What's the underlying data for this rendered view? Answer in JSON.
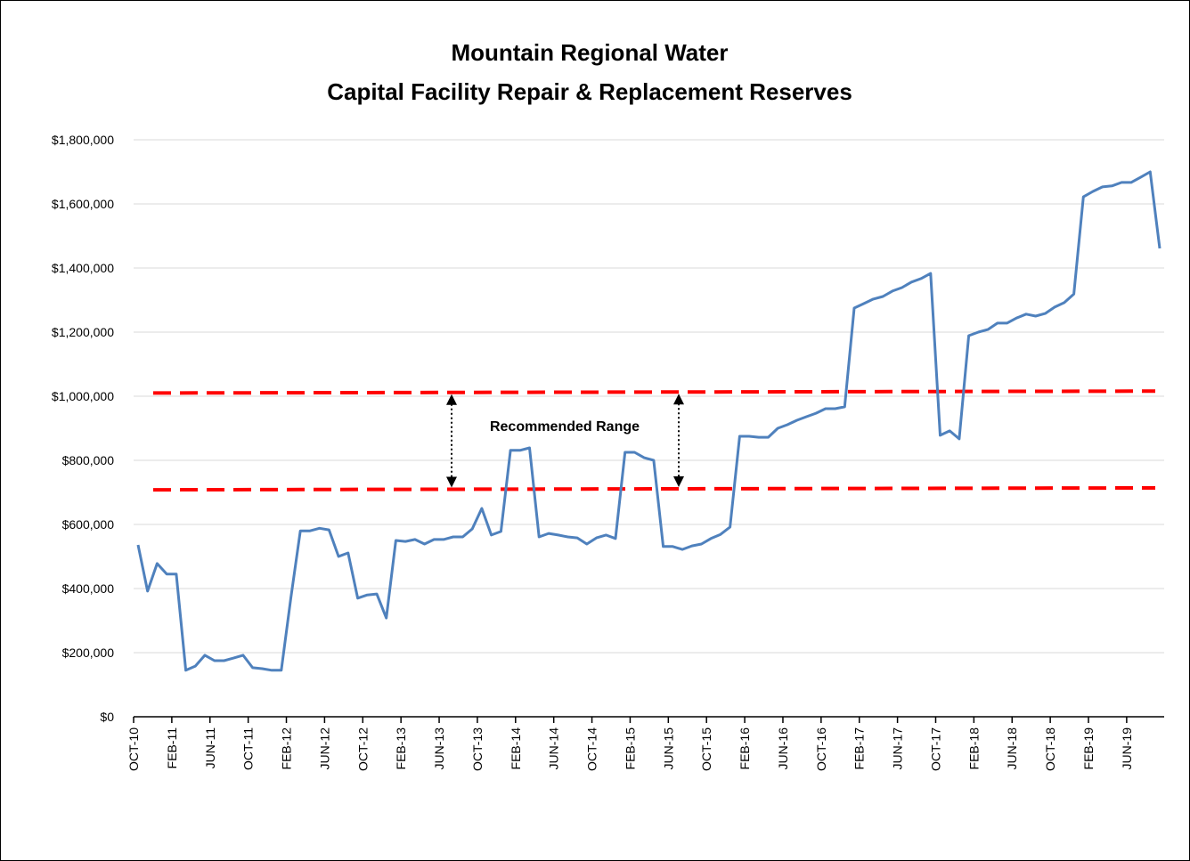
{
  "chart_data": {
    "type": "line",
    "title": [
      "Mountain Regional Water",
      "Capital Facility Repair & Replacement Reserves"
    ],
    "categories": [
      "OCT-10",
      null,
      null,
      null,
      "FEB-11",
      null,
      null,
      null,
      "JUN-11",
      null,
      null,
      null,
      "OCT-11",
      null,
      null,
      null,
      "FEB-12",
      null,
      null,
      null,
      "JUN-12",
      null,
      null,
      null,
      "OCT-12",
      null,
      null,
      null,
      "FEB-13",
      null,
      null,
      null,
      "JUN-13",
      null,
      null,
      null,
      "OCT-13",
      null,
      null,
      null,
      "FEB-14",
      null,
      null,
      null,
      "JUN-14",
      null,
      null,
      null,
      "OCT-14",
      null,
      null,
      null,
      "FEB-15",
      null,
      null,
      null,
      "JUN-15",
      null,
      null,
      null,
      "OCT-15",
      null,
      null,
      null,
      "FEB-16",
      null,
      null,
      null,
      "JUN-16",
      null,
      null,
      null,
      "OCT-16",
      null,
      null,
      null,
      "FEB-17",
      null,
      null,
      null,
      "JUN-17",
      null,
      null,
      null,
      "OCT-17",
      null,
      null,
      null,
      "FEB-18",
      null,
      null,
      null,
      "JUN-18",
      null,
      null,
      null,
      "OCT-18",
      null,
      null,
      null,
      "FEB-19",
      null,
      null,
      null,
      "JUN-19",
      null,
      null,
      null
    ],
    "series": [
      {
        "color": "#4f81bd",
        "values": [
          536000,
          392000,
          478000,
          445000,
          445000,
          145000,
          158000,
          192000,
          175000,
          175000,
          183000,
          192000,
          153000,
          150000,
          145000,
          145000,
          370000,
          580000,
          580000,
          588000,
          583000,
          500000,
          511000,
          370000,
          380000,
          383000,
          308000,
          550000,
          547000,
          553000,
          539000,
          553000,
          553000,
          561000,
          561000,
          586000,
          650000,
          567000,
          578000,
          831000,
          831000,
          839000,
          561000,
          572000,
          567000,
          561000,
          558000,
          539000,
          558000,
          567000,
          556000,
          825000,
          825000,
          808000,
          800000,
          531000,
          531000,
          522000,
          533000,
          539000,
          556000,
          569000,
          592000,
          875000,
          875000,
          872000,
          872000,
          900000,
          911000,
          925000,
          936000,
          947000,
          961000,
          961000,
          967000,
          1275000,
          1289000,
          1303000,
          1311000,
          1328000,
          1339000,
          1356000,
          1367000,
          1383000,
          878000,
          892000,
          867000,
          1189000,
          1200000,
          1208000,
          1228000,
          1228000,
          1244000,
          1256000,
          1250000,
          1258000,
          1278000,
          1292000,
          1319000,
          1622000,
          1639000,
          1653000,
          1656000,
          1667000,
          1667000,
          1683000,
          1700000,
          1461000
        ]
      }
    ],
    "reference_lines": [
      {
        "color": "#ff0000",
        "values": [
          1010000,
          1016000
        ]
      },
      {
        "color": "#ff0000",
        "values": [
          708000,
          714000
        ]
      }
    ],
    "annotation": "Recommended Range",
    "annotation_color": "#ff0000",
    "ylim": [
      0,
      1800000
    ],
    "yticks": [
      {
        "value": 0,
        "label": "$0"
      },
      {
        "value": 200000,
        "label": "$200,000"
      },
      {
        "value": 400000,
        "label": "$400,000"
      },
      {
        "value": 600000,
        "label": "$600,000"
      },
      {
        "value": 800000,
        "label": "$800,000"
      },
      {
        "value": 1000000,
        "label": "$1,000,000"
      },
      {
        "value": 1200000,
        "label": "$1,200,000"
      },
      {
        "value": 1400000,
        "label": "$1,400,000"
      },
      {
        "value": 1600000,
        "label": "$1,600,000"
      },
      {
        "value": 1800000,
        "label": "$1,800,000"
      }
    ],
    "grid": true
  }
}
